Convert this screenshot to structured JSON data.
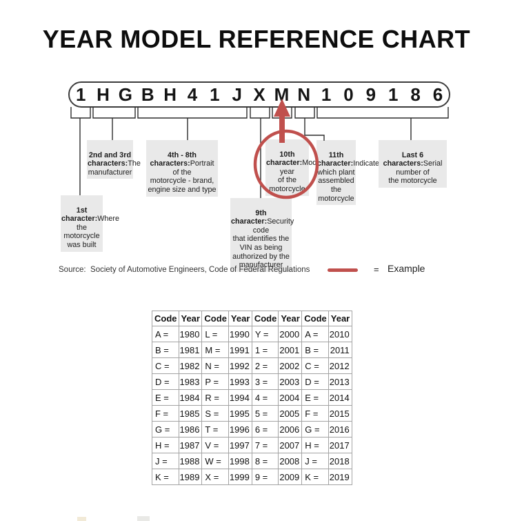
{
  "title": "YEAR MODEL REFERENCE CHART",
  "vin": {
    "characters": [
      "1",
      "H",
      "G",
      "B",
      "H",
      "4",
      "1",
      "J",
      "X",
      "M",
      "N",
      "1",
      "0",
      "9",
      "1",
      "8",
      "6"
    ]
  },
  "labels": {
    "first": {
      "heading": "1st\ncharacter:",
      "body": "Where the\nmotorcycle\nwas built"
    },
    "second_third": {
      "heading": "2nd and 3rd\ncharacters:",
      "body": "The\nmanufacturer"
    },
    "fourth_eighth": {
      "heading": "4th - 8th\ncharacters:",
      "body": "Portrait of the\nmotorcycle - brand,\nengine size and type"
    },
    "ninth": {
      "heading": "9th character:",
      "body": "Security code\nthat identifies the\nVIN as being\nauthorized by the\nmanufacturer"
    },
    "tenth": {
      "heading": "10th\ncharacter:",
      "body": "Model year\nof the\nmotorcycle"
    },
    "eleventh": {
      "heading": "11th\ncharacter:",
      "body": "Indicates\nwhich plant\nassembled\nthe\nmotorcycle"
    },
    "last_six": {
      "heading": "Last 6\ncharacters:",
      "body": "Serial number of\nthe motorcycle"
    }
  },
  "source_text": "Source:  Society of Automotive Engineers, Code of Federal Regulations",
  "legend": {
    "equals": "=",
    "label": "Example"
  },
  "icons": {
    "example_arrow": "red-up-arrow",
    "example_highlight_vin": "red-ellipse-outline",
    "example_highlight_table": "red-ellipse-outline"
  },
  "colors": {
    "example_red": "#c0504d",
    "label_background": "#e9e9e9",
    "connector_line": "#2b2b2b",
    "table_border": "#a3a3a3"
  },
  "table": {
    "headers": [
      "Code",
      "Year",
      "Code",
      "Year",
      "Code",
      "Year",
      "Code",
      "Year"
    ],
    "rows": [
      [
        "A =",
        "1980",
        "L =",
        "1990",
        "Y =",
        "2000",
        "A =",
        "2010"
      ],
      [
        "B =",
        "1981",
        "M =",
        "1991",
        "1 =",
        "2001",
        "B =",
        "2011"
      ],
      [
        "C =",
        "1982",
        "N =",
        "1992",
        "2 =",
        "2002",
        "C =",
        "2012"
      ],
      [
        "D =",
        "1983",
        "P =",
        "1993",
        "3 =",
        "2003",
        "D =",
        "2013"
      ],
      [
        "E =",
        "1984",
        "R =",
        "1994",
        "4 =",
        "2004",
        "E =",
        "2014"
      ],
      [
        "F =",
        "1985",
        "S =",
        "1995",
        "5 =",
        "2005",
        "F =",
        "2015"
      ],
      [
        "G =",
        "1986",
        "T =",
        "1996",
        "6 =",
        "2006",
        "G =",
        "2016"
      ],
      [
        "H =",
        "1987",
        "V =",
        "1997",
        "7 =",
        "2007",
        "H =",
        "2017"
      ],
      [
        "J =",
        "1988",
        "W =",
        "1998",
        "8 =",
        "2008",
        "J =",
        "2018"
      ],
      [
        "K =",
        "1989",
        "X =",
        "1999",
        "9 =",
        "2009",
        "K =",
        "2019"
      ]
    ]
  }
}
